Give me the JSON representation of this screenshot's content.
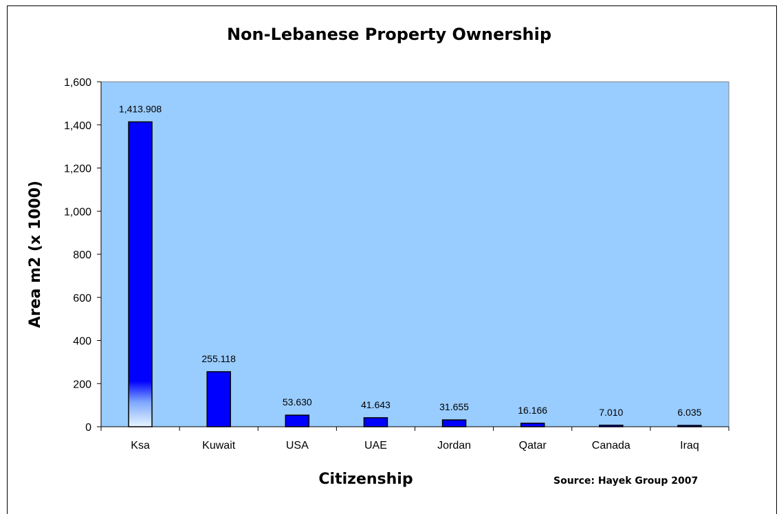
{
  "chart_data": {
    "type": "bar",
    "title": "Non-Lebanese Property Ownership",
    "xlabel": "Citizenship",
    "ylabel": "Area m2 (x 1000)",
    "categories": [
      "Ksa",
      "Kuwait",
      "USA",
      "UAE",
      "Jordan",
      "Qatar",
      "Canada",
      "Iraq"
    ],
    "values": [
      1413.908,
      255.118,
      53.63,
      41.643,
      31.655,
      16.166,
      7.01,
      6.035
    ],
    "data_labels": [
      "1,413.908",
      "255.118",
      "53.630",
      "41.643",
      "31.655",
      "16.166",
      "7.010",
      "6.035"
    ],
    "ylim": [
      0,
      1600
    ],
    "yticks": [
      0,
      200,
      400,
      600,
      800,
      1000,
      1200,
      1400,
      1600
    ],
    "ytick_labels": [
      "0",
      "200",
      "400",
      "600",
      "800",
      "1,000",
      "1,200",
      "1,400",
      "1,600"
    ],
    "grid": false,
    "legend": "none",
    "source": "Source: Hayek Group 2007",
    "colors": {
      "plot_bg": "#99CCFF",
      "bar": "#0000FF",
      "bar_edge": "#000000"
    }
  }
}
